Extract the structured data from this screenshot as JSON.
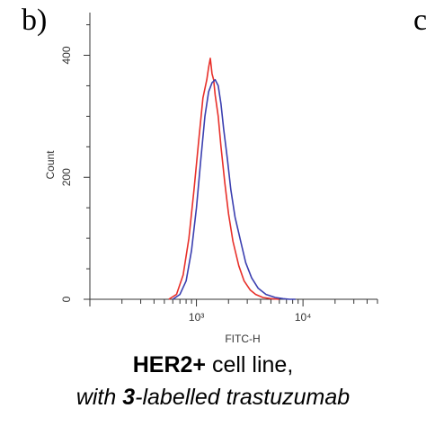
{
  "panel_label": "b)",
  "next_panel_label": "c",
  "caption": {
    "line1_bold": "HER2+",
    "line1_rest": " cell line,",
    "line2_pre": "with ",
    "line2_bold": "3",
    "line2_rest": "-labelled trastuzumab"
  },
  "colors": {
    "red": "#e8302a",
    "blue": "#3b3fb0",
    "axis": "#333333"
  },
  "chart_data": {
    "type": "line",
    "xlabel": "FITC-H",
    "ylabel": "Count",
    "xscale": "log",
    "xlim": [
      100,
      50000
    ],
    "ylim": [
      0,
      470
    ],
    "yticks": [
      {
        "value": 0,
        "label": "0"
      },
      {
        "value": 200,
        "label": "200"
      },
      {
        "value": 400,
        "label": "400"
      }
    ],
    "xticks": [
      {
        "value": 1000,
        "label": "10³"
      },
      {
        "value": 10000,
        "label": "10⁴"
      }
    ],
    "grid": false,
    "series": [
      {
        "color": "red",
        "x": [
          550,
          650,
          750,
          850,
          950,
          1050,
          1150,
          1250,
          1300,
          1350,
          1400,
          1450,
          1500,
          1600,
          1700,
          1850,
          2000,
          2200,
          2500,
          2800,
          3200,
          3600,
          4200,
          5000,
          6000
        ],
        "y": [
          0,
          8,
          40,
          100,
          180,
          260,
          330,
          360,
          380,
          395,
          370,
          360,
          335,
          300,
          250,
          190,
          140,
          95,
          55,
          30,
          15,
          8,
          3,
          1,
          0
        ]
      },
      {
        "color": "blue",
        "x": [
          600,
          700,
          800,
          900,
          1000,
          1100,
          1200,
          1300,
          1400,
          1500,
          1600,
          1700,
          1800,
          1950,
          2100,
          2300,
          2600,
          2900,
          3300,
          3800,
          4500,
          5500,
          6500,
          7500,
          8500
        ],
        "y": [
          0,
          8,
          30,
          80,
          150,
          230,
          300,
          340,
          355,
          360,
          350,
          320,
          280,
          230,
          180,
          135,
          95,
          60,
          35,
          18,
          8,
          3,
          1,
          0,
          0
        ]
      }
    ]
  }
}
